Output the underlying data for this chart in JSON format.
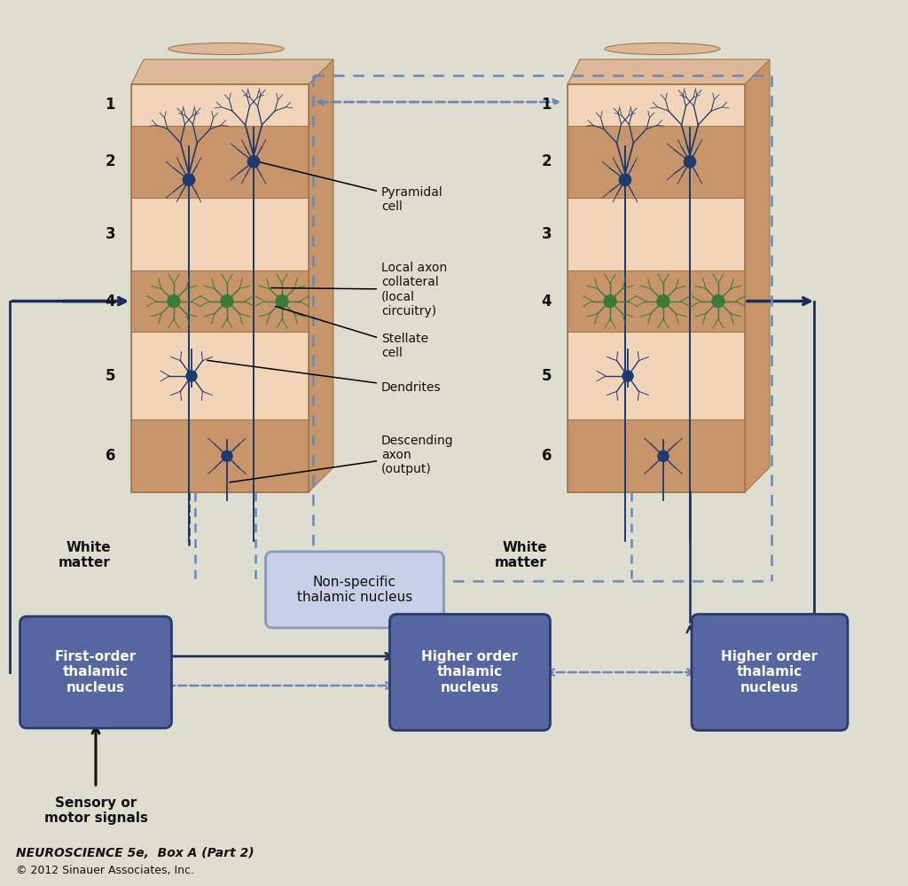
{
  "bg_color": "#deded0",
  "cortex_layer_light": "#f2d5b8",
  "cortex_layer_dark": "#c8956a",
  "cortex_top_face": "#ddb898",
  "cortex_right_face": "#c8956a",
  "neuron_blue": "#1e3a6e",
  "neuron_green": "#3a7a3a",
  "arrow_dark": "#1a2e5a",
  "arrow_dash": "#6688bb",
  "box_dark_face": "#5566a0",
  "box_dark_edge": "#2a3a70",
  "box_dark_text": "#ffffff",
  "box_light_face": "#c8d0e8",
  "box_light_edge": "#8899bb",
  "box_light_text": "#111111",
  "layer_labels": [
    "1",
    "2",
    "3",
    "4",
    "5",
    "6"
  ],
  "label_white_matter_left": "White\nmatter",
  "label_white_matter_right": "White\nmatter",
  "label_first_order": "First-order\nthalamic\nnucleus",
  "label_non_specific": "Non-specific\nthalamic nucleus",
  "label_higher_order_1": "Higher order\nthalamic\nnucleus",
  "label_higher_order_2": "Higher order\nthalamic\nnucleus",
  "label_sensory": "Sensory or\nmotor signals",
  "ann_pyramidal": "Pyramidal\ncell",
  "ann_local_axon": "Local axon\ncollateral\n(local\ncircuitry)",
  "ann_stellate": "Stellate\ncell",
  "ann_dendrites": "Dendrites",
  "ann_descending": "Descending\naxon\n(output)",
  "title": "NEUROSCIENCE 5e,  Box A (Part 2)",
  "copyright": "© 2012 Sinauer Associates, Inc."
}
